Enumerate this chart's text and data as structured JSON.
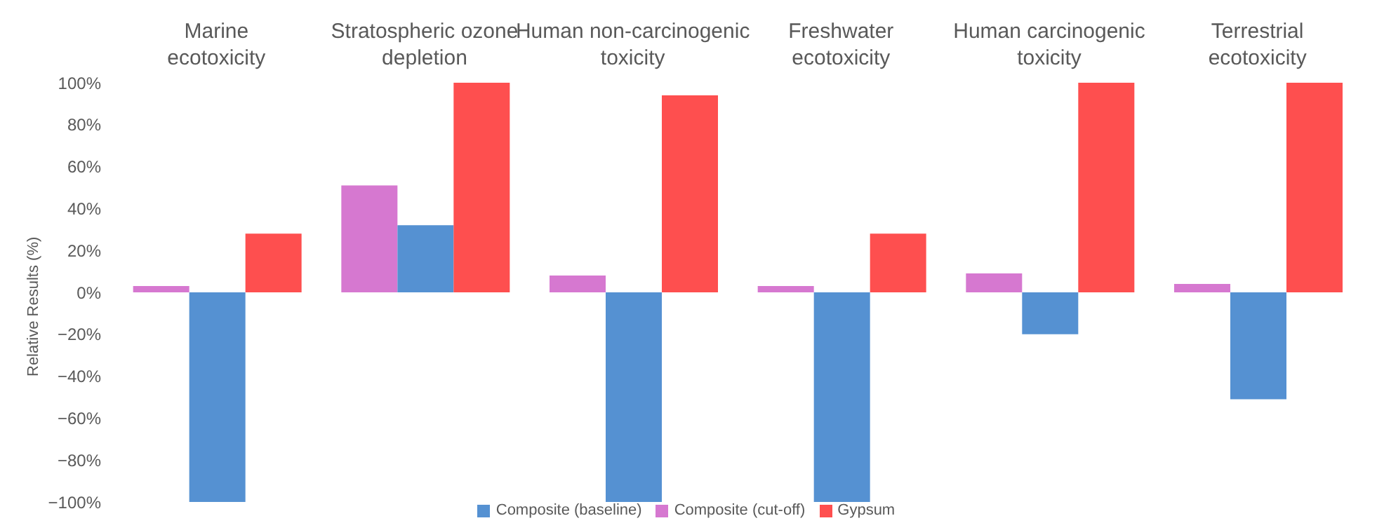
{
  "chart_data": {
    "type": "bar",
    "ylabel": "Relative Results (%)",
    "categories": [
      "Marine ecotoxicity",
      "Stratospheric ozone depletion",
      "Human non-carcinogenic toxicity",
      "Freshwater ecotoxicity",
      "Human carcinogenic toxicity",
      "Terrestrial ecotoxicity"
    ],
    "series": [
      {
        "name": "Composite (cut-off)",
        "color": "#d678d0",
        "values": [
          3,
          51,
          8,
          3,
          9,
          4
        ]
      },
      {
        "name": "Composite (baseline)",
        "color": "#5591d2",
        "values": [
          -100,
          32,
          -100,
          -100,
          -20,
          -51
        ]
      },
      {
        "name": "Gypsum",
        "color": "#fe4f4f",
        "values": [
          28,
          100,
          94,
          28,
          100,
          100
        ]
      }
    ],
    "ylim": [
      -100,
      100
    ],
    "yticks": [
      {
        "value": 100,
        "label": "100%"
      },
      {
        "value": 80,
        "label": "80%"
      },
      {
        "value": 60,
        "label": "60%"
      },
      {
        "value": 40,
        "label": "40%"
      },
      {
        "value": 20,
        "label": "20%"
      },
      {
        "value": 0,
        "label": "0%"
      },
      {
        "value": -20,
        "label": "−20%"
      },
      {
        "value": -40,
        "label": "−40%"
      },
      {
        "value": -60,
        "label": "−60%"
      },
      {
        "value": -80,
        "label": "−80%"
      },
      {
        "value": -100,
        "label": "−100%"
      }
    ],
    "grid": false,
    "legend": "bottom"
  }
}
